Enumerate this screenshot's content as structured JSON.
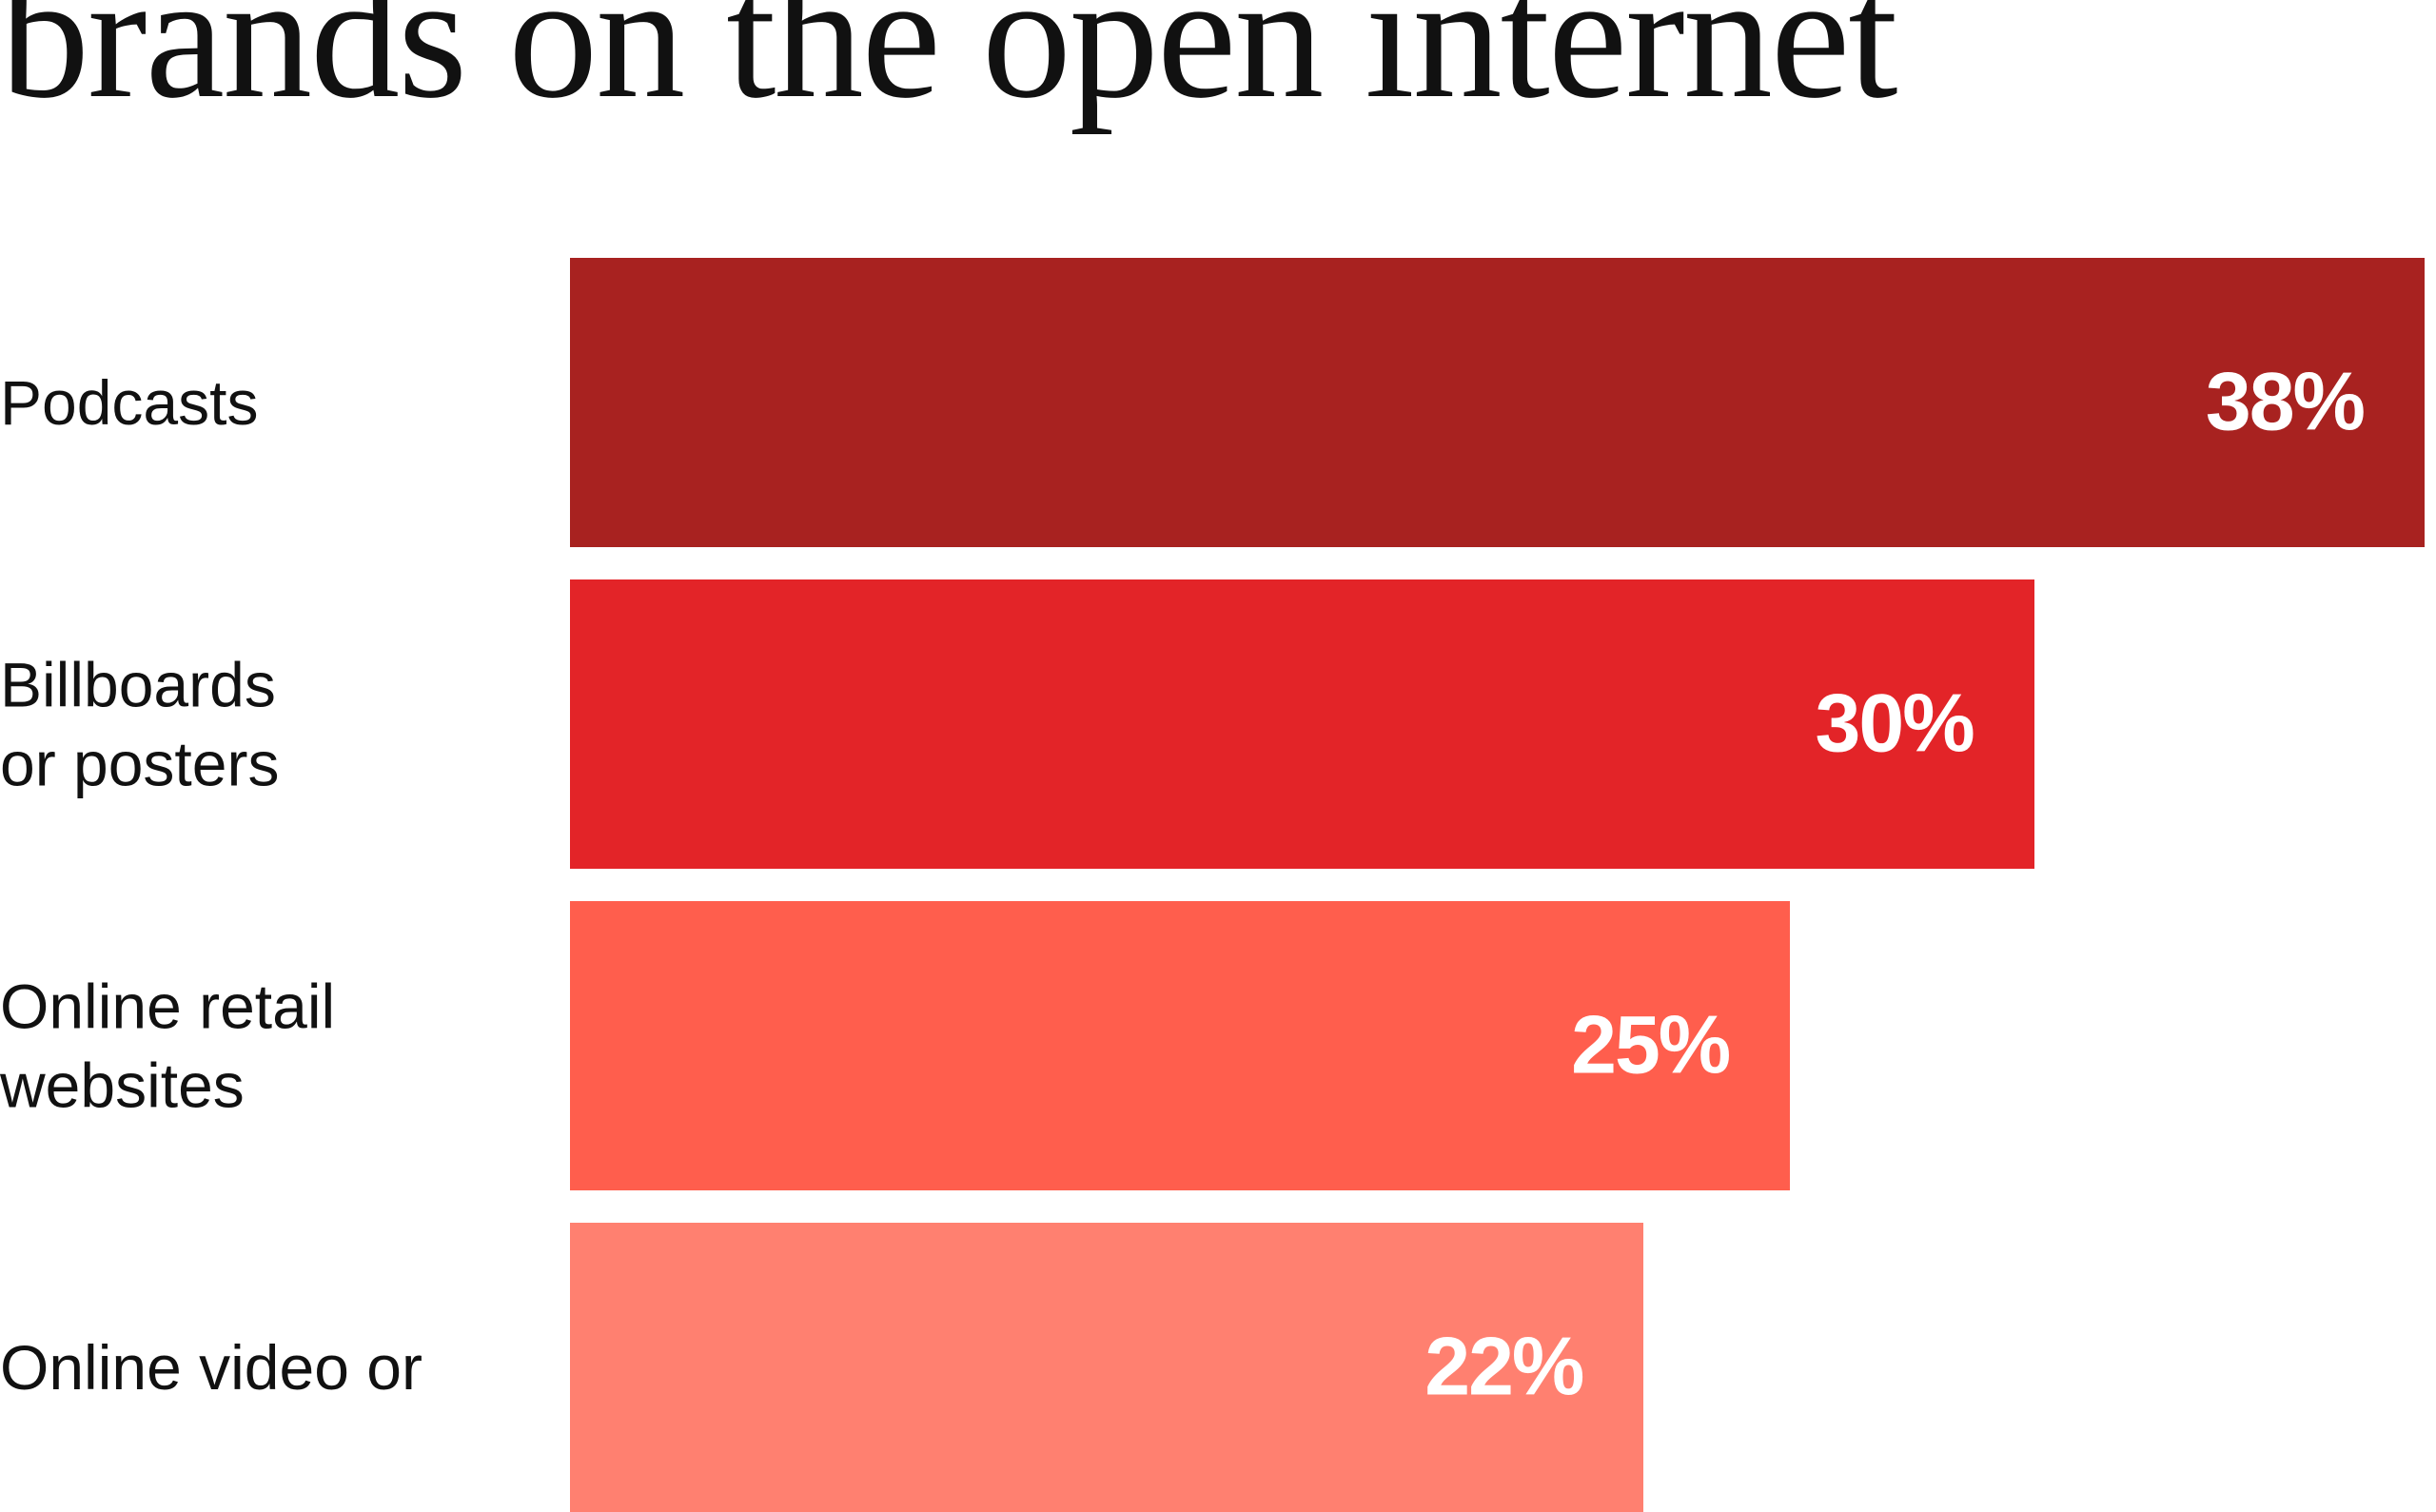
{
  "chart_data": {
    "type": "bar",
    "orientation": "horizontal",
    "title": "brands on the open internet",
    "categories": [
      "Podcasts",
      "Billboards\nor posters",
      "Online retail\nwebsites",
      "Online video or"
    ],
    "values": [
      38,
      30,
      25,
      22
    ],
    "value_labels": [
      "38%",
      "30%",
      "25%",
      "22%"
    ],
    "colors": [
      "#a82220",
      "#e32428",
      "#ff5e4d",
      "#ff8070"
    ]
  }
}
